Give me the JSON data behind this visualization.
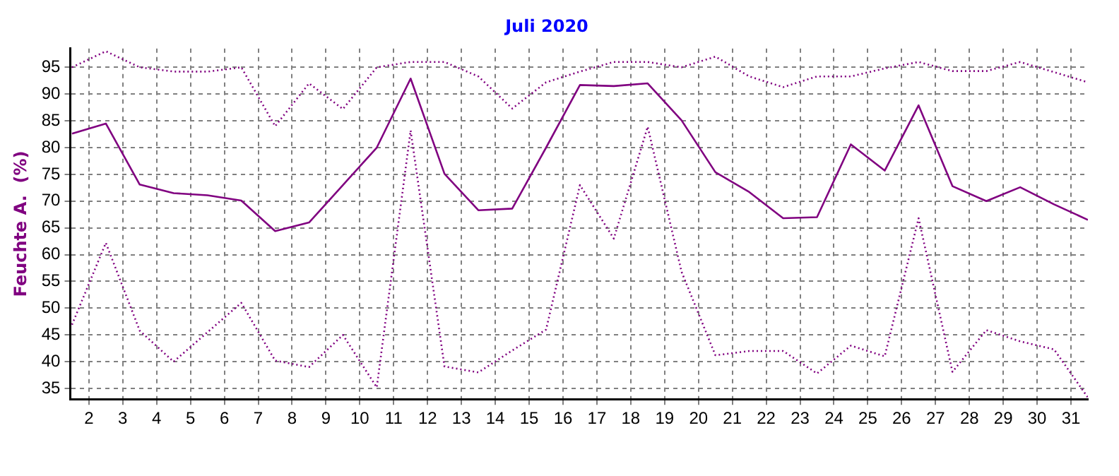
{
  "chart_data": {
    "type": "line",
    "title": "Juli 2020",
    "ylabel": "Feuchte A.  (%)",
    "x": [
      1.5,
      2.5,
      3.5,
      4.5,
      5.5,
      6.5,
      7.5,
      8.5,
      9.5,
      10.5,
      11.5,
      12.5,
      13.5,
      14.5,
      15.5,
      16.5,
      17.5,
      18.5,
      19.5,
      20.5,
      21.5,
      22.5,
      23.5,
      24.5,
      25.5,
      26.5,
      27.5,
      28.5,
      29.5,
      30.5,
      31.5
    ],
    "series": [
      {
        "color": "#800080",
        "line_style": "dotted",
        "values": [
          95,
          98,
          95,
          94.2,
          94.2,
          95,
          84,
          92,
          87.2,
          95,
          96,
          96,
          93.3,
          87.3,
          92.2,
          94.2,
          96,
          96,
          95,
          97,
          93.3,
          91.3,
          93.3,
          93.3,
          94.8,
          96,
          94.3,
          94.3,
          96,
          94.1,
          92.2
        ]
      },
      {
        "color": "#800080",
        "line_style": "solid",
        "values": [
          82.6,
          84.5,
          73.1,
          71.5,
          71.1,
          70.1,
          64.4,
          66,
          73,
          80,
          92.9,
          75.1,
          68.3,
          68.6,
          80,
          91.7,
          91.5,
          92,
          85.1,
          75.4,
          71.7,
          66.8,
          67,
          80.6,
          75.7,
          87.9,
          72.8,
          70,
          72.6,
          69.4,
          66.5
        ]
      },
      {
        "color": "#800080",
        "line_style": "dotted",
        "values": [
          46.9,
          62.2,
          45.8,
          40,
          45.5,
          51,
          40.2,
          39,
          45,
          35.2,
          83.2,
          39.1,
          38,
          42.1,
          46,
          73,
          63,
          83.9,
          56.8,
          41.2,
          42,
          42,
          37.8,
          43,
          41,
          66.8,
          38.1,
          45.9,
          43.8,
          42.3,
          33.3
        ]
      }
    ],
    "xlim": [
      1.45,
      31.5
    ],
    "xticks": [
      2,
      3,
      4,
      5,
      6,
      7,
      8,
      9,
      10,
      11,
      12,
      13,
      14,
      15,
      16,
      17,
      18,
      19,
      20,
      21,
      22,
      23,
      24,
      25,
      26,
      27,
      28,
      29,
      30,
      31
    ],
    "ylim": [
      33,
      98.5
    ],
    "yticks": [
      35,
      40,
      45,
      50,
      55,
      60,
      65,
      70,
      75,
      80,
      85,
      90,
      95
    ],
    "grid": true,
    "legend": false,
    "marker": "none"
  }
}
